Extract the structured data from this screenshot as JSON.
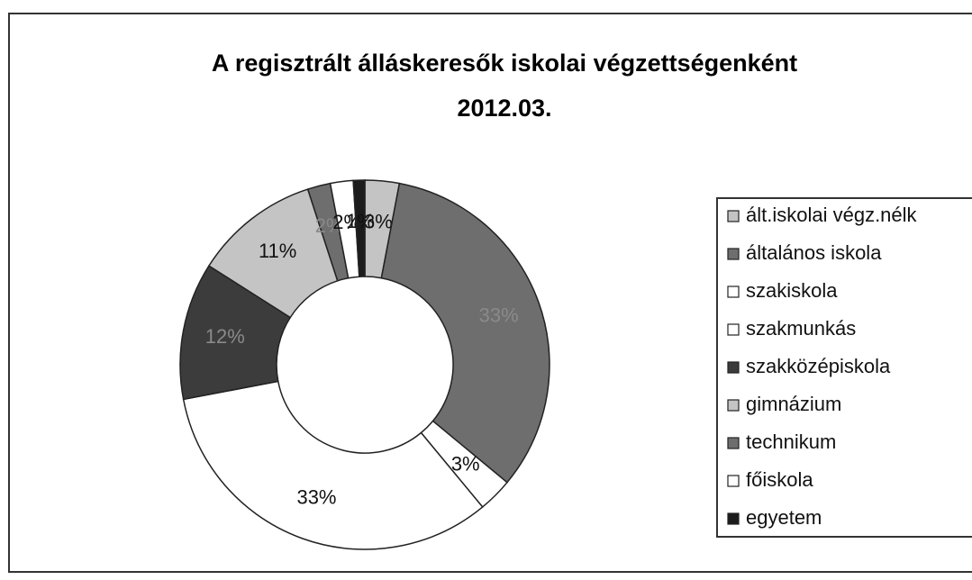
{
  "chart_data": {
    "type": "donut",
    "title": "A regisztrált álláskeresők iskolai végzettségenként",
    "subtitle": "2012.03.",
    "categories": [
      "ált.iskolai végz.nélk",
      "általános iskola",
      "szakiskola",
      "szakmunkás",
      "szakközépiskola",
      "gimnázium",
      "technikum",
      "főiskola",
      "egyetem"
    ],
    "values": [
      3,
      33,
      3,
      33,
      12,
      11,
      2,
      2,
      1
    ],
    "value_labels": [
      "3%",
      "33%",
      "3%",
      "33%",
      "12%",
      "11%",
      "2%",
      "2%",
      "1%"
    ],
    "colors": [
      "#c4c4c4",
      "#6e6e6e",
      "#ffffff",
      "#ffffff",
      "#3c3c3c",
      "#c4c4c4",
      "#6e6e6e",
      "#ffffff",
      "#1c1c1c"
    ],
    "legend": "right"
  }
}
